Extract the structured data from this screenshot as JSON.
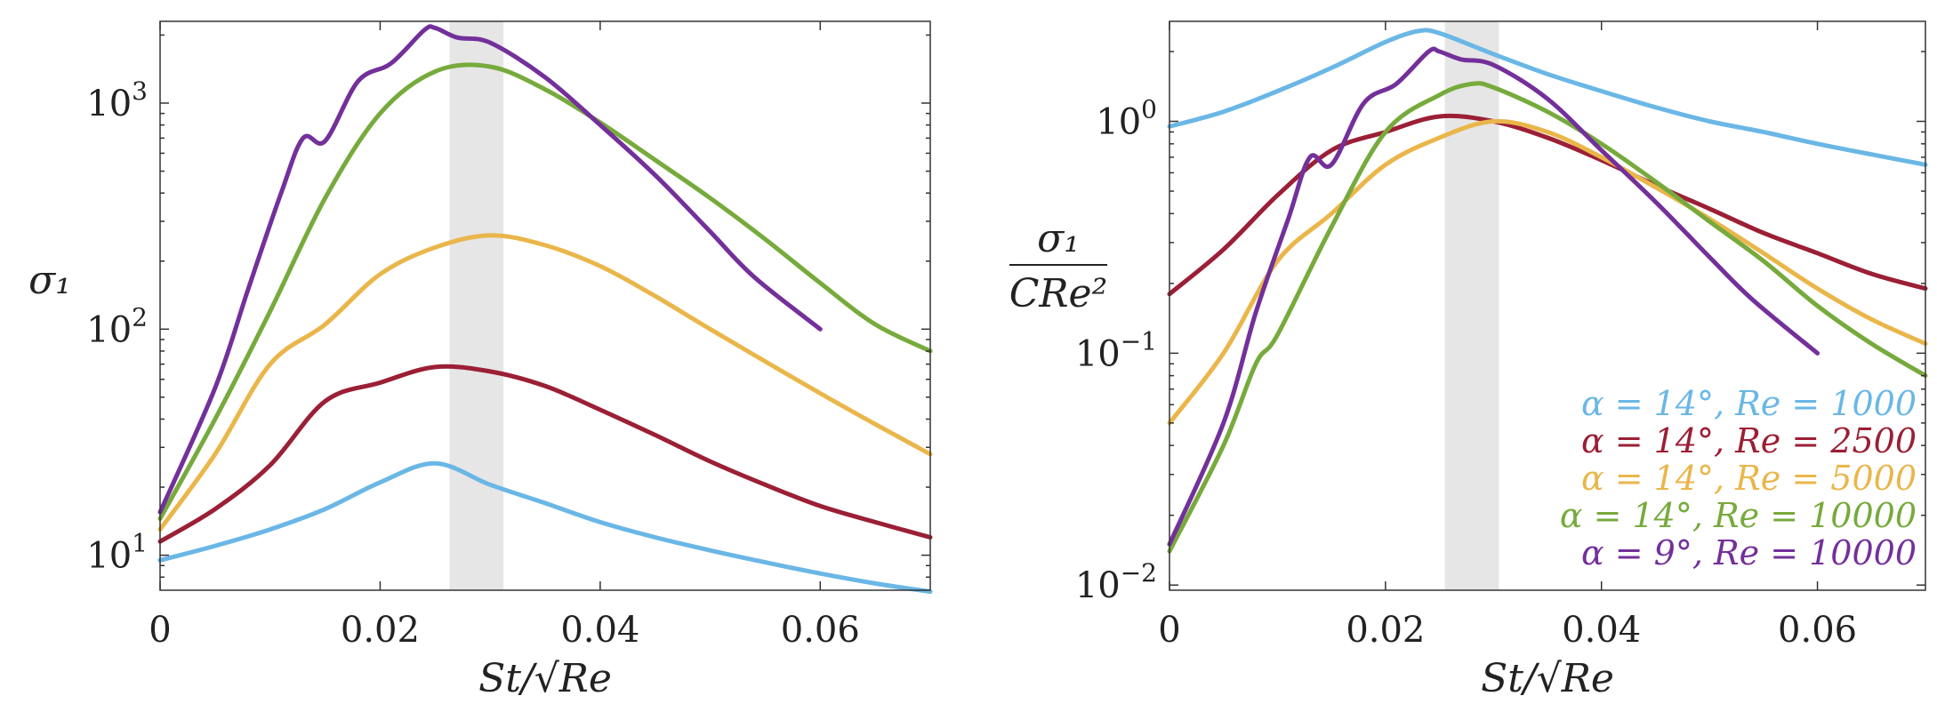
{
  "chart_data": [
    {
      "type": "line",
      "yscale": "log",
      "xlim": [
        0,
        0.07
      ],
      "ylim": [
        7,
        2300
      ],
      "xticks": [
        0,
        0.02,
        0.04,
        0.06
      ],
      "xtick_labels": [
        "0",
        "0.02",
        "0.04",
        "0.06"
      ],
      "yticks": [
        10,
        100,
        1000
      ],
      "ytick_labels": [
        {
          "base": "10",
          "exp": "1"
        },
        {
          "base": "10",
          "exp": "2"
        },
        {
          "base": "10",
          "exp": "3"
        }
      ],
      "xlabel": "St/√Re",
      "ylabel": "σ₁",
      "shaded_band": [
        0.0263,
        0.0312
      ],
      "series": [
        {
          "name": "α = 14°, Re = 1000",
          "color": "#6ab7e6",
          "x": [
            0,
            0.005,
            0.01,
            0.015,
            0.02,
            0.025,
            0.03,
            0.035,
            0.04,
            0.045,
            0.05,
            0.055,
            0.06,
            0.065,
            0.07
          ],
          "y": [
            9.5,
            11,
            13,
            16,
            21,
            25.5,
            20.5,
            17,
            14,
            12,
            10.5,
            9.3,
            8.3,
            7.5,
            6.9
          ]
        },
        {
          "name": "α = 14°, Re = 2500",
          "color": "#9b1f35",
          "x": [
            0,
            0.005,
            0.01,
            0.015,
            0.02,
            0.025,
            0.03,
            0.035,
            0.04,
            0.045,
            0.05,
            0.055,
            0.06,
            0.065,
            0.07
          ],
          "y": [
            11.5,
            16,
            25,
            48,
            58,
            68,
            65,
            56,
            44,
            34,
            26,
            20.5,
            16.5,
            14,
            12
          ]
        },
        {
          "name": "α = 14°, Re = 5000",
          "color": "#eab64a",
          "x": [
            0,
            0.005,
            0.01,
            0.015,
            0.02,
            0.025,
            0.03,
            0.035,
            0.04,
            0.045,
            0.05,
            0.055,
            0.06,
            0.065,
            0.07
          ],
          "y": [
            13,
            28,
            70,
            105,
            175,
            230,
            260,
            235,
            190,
            140,
            100,
            72,
            52,
            38,
            28
          ]
        },
        {
          "name": "α = 14°, Re = 10000",
          "color": "#77aa3c",
          "x": [
            0,
            0.005,
            0.01,
            0.015,
            0.02,
            0.025,
            0.03,
            0.035,
            0.04,
            0.045,
            0.05,
            0.055,
            0.06,
            0.065,
            0.07
          ],
          "y": [
            14.5,
            40,
            120,
            380,
            900,
            1380,
            1450,
            1150,
            820,
            560,
            380,
            250,
            160,
            105,
            80
          ]
        },
        {
          "name": "α = 9°, Re = 10000",
          "color": "#73309a",
          "x": [
            0,
            0.005,
            0.008,
            0.011,
            0.013,
            0.015,
            0.018,
            0.021,
            0.024,
            0.025,
            0.027,
            0.03,
            0.035,
            0.04,
            0.045,
            0.05,
            0.054,
            0.06
          ],
          "y": [
            15.5,
            55,
            150,
            400,
            700,
            680,
            1250,
            1500,
            2100,
            2150,
            1950,
            1850,
            1300,
            800,
            480,
            270,
            170,
            100
          ]
        }
      ]
    },
    {
      "type": "line",
      "yscale": "log",
      "xlim": [
        0,
        0.07
      ],
      "ylim": [
        0.0095,
        2.7
      ],
      "xticks": [
        0,
        0.02,
        0.04,
        0.06
      ],
      "xtick_labels": [
        "0",
        "0.02",
        "0.04",
        "0.06"
      ],
      "yticks": [
        0.01,
        0.1,
        1
      ],
      "ytick_labels": [
        {
          "base": "10",
          "exp": "−2"
        },
        {
          "base": "10",
          "exp": "−1"
        },
        {
          "base": "10",
          "exp": "0"
        }
      ],
      "xlabel": "St/√Re",
      "ylabel_numerator": "σ₁",
      "ylabel_denominator": "CRe²",
      "shaded_band": [
        0.0255,
        0.0305
      ],
      "legend_position": "bottom-right",
      "series": [
        {
          "name": "α = 14°, Re = 1000",
          "color": "#6ab7e6",
          "x": [
            0,
            0.005,
            0.01,
            0.015,
            0.02,
            0.023,
            0.025,
            0.03,
            0.035,
            0.04,
            0.045,
            0.05,
            0.055,
            0.06,
            0.065,
            0.07
          ],
          "y": [
            0.95,
            1.1,
            1.35,
            1.7,
            2.2,
            2.45,
            2.4,
            1.95,
            1.6,
            1.35,
            1.15,
            1.0,
            0.9,
            0.8,
            0.72,
            0.65
          ]
        },
        {
          "name": "α = 14°, Re = 2500",
          "color": "#9b1f35",
          "x": [
            0,
            0.005,
            0.01,
            0.015,
            0.02,
            0.025,
            0.03,
            0.035,
            0.04,
            0.045,
            0.05,
            0.055,
            0.06,
            0.065,
            0.07
          ],
          "y": [
            0.18,
            0.28,
            0.48,
            0.75,
            0.9,
            1.05,
            1.0,
            0.85,
            0.68,
            0.53,
            0.42,
            0.33,
            0.27,
            0.22,
            0.19
          ]
        },
        {
          "name": "α = 14°, Re = 5000",
          "color": "#eab64a",
          "x": [
            0,
            0.005,
            0.01,
            0.015,
            0.02,
            0.025,
            0.03,
            0.035,
            0.04,
            0.045,
            0.05,
            0.055,
            0.06,
            0.065,
            0.07
          ],
          "y": [
            0.05,
            0.1,
            0.25,
            0.4,
            0.65,
            0.85,
            1.0,
            0.9,
            0.7,
            0.52,
            0.38,
            0.27,
            0.19,
            0.14,
            0.11
          ]
        },
        {
          "name": "α = 14°, Re = 10000",
          "color": "#77aa3c",
          "x": [
            0,
            0.005,
            0.008,
            0.01,
            0.015,
            0.02,
            0.025,
            0.028,
            0.03,
            0.035,
            0.04,
            0.045,
            0.05,
            0.055,
            0.06,
            0.065,
            0.07
          ],
          "y": [
            0.014,
            0.04,
            0.09,
            0.12,
            0.35,
            0.9,
            1.3,
            1.45,
            1.4,
            1.1,
            0.8,
            0.55,
            0.37,
            0.25,
            0.16,
            0.11,
            0.08
          ]
        },
        {
          "name": "α = 9°, Re = 10000",
          "color": "#73309a",
          "x": [
            0,
            0.005,
            0.008,
            0.011,
            0.013,
            0.015,
            0.018,
            0.021,
            0.024,
            0.025,
            0.027,
            0.03,
            0.035,
            0.04,
            0.045,
            0.05,
            0.054,
            0.06
          ],
          "y": [
            0.015,
            0.05,
            0.15,
            0.38,
            0.7,
            0.65,
            1.2,
            1.45,
            2.0,
            2.0,
            1.85,
            1.75,
            1.25,
            0.75,
            0.45,
            0.26,
            0.17,
            0.1
          ]
        }
      ]
    }
  ]
}
